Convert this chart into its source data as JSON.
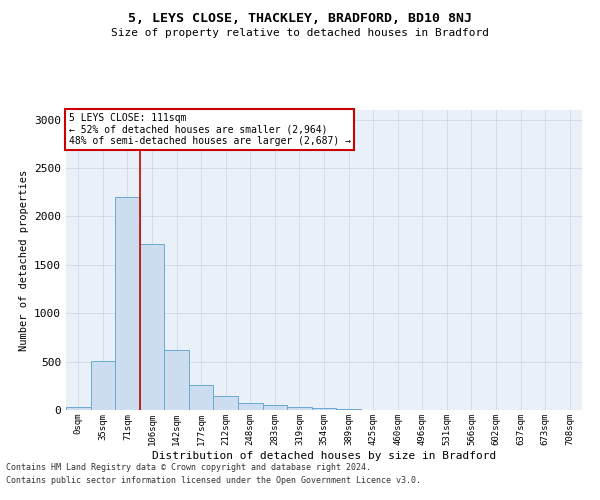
{
  "title1": "5, LEYS CLOSE, THACKLEY, BRADFORD, BD10 8NJ",
  "title2": "Size of property relative to detached houses in Bradford",
  "xlabel": "Distribution of detached houses by size in Bradford",
  "ylabel": "Number of detached properties",
  "bar_labels": [
    "0sqm",
    "35sqm",
    "71sqm",
    "106sqm",
    "142sqm",
    "177sqm",
    "212sqm",
    "248sqm",
    "283sqm",
    "319sqm",
    "354sqm",
    "389sqm",
    "425sqm",
    "460sqm",
    "496sqm",
    "531sqm",
    "566sqm",
    "602sqm",
    "637sqm",
    "673sqm",
    "708sqm"
  ],
  "bar_values": [
    30,
    510,
    2200,
    1720,
    620,
    260,
    140,
    70,
    55,
    30,
    18,
    8,
    4,
    3,
    2,
    1,
    1,
    0,
    0,
    0,
    0
  ],
  "bar_color": "#ccddf0",
  "bar_edge_color": "#6aaad4",
  "vline_x_idx": 3,
  "vline_color": "#cc0000",
  "annotation_text": "5 LEYS CLOSE: 111sqm\n← 52% of detached houses are smaller (2,964)\n48% of semi-detached houses are larger (2,687) →",
  "annotation_box_facecolor": "#ffffff",
  "annotation_box_edgecolor": "#cc0000",
  "ylim": [
    0,
    3100
  ],
  "yticks": [
    0,
    500,
    1000,
    1500,
    2000,
    2500,
    3000
  ],
  "grid_color": "#d0d8e8",
  "bg_color": "#eaf0f8",
  "footnote1": "Contains HM Land Registry data © Crown copyright and database right 2024.",
  "footnote2": "Contains public sector information licensed under the Open Government Licence v3.0."
}
